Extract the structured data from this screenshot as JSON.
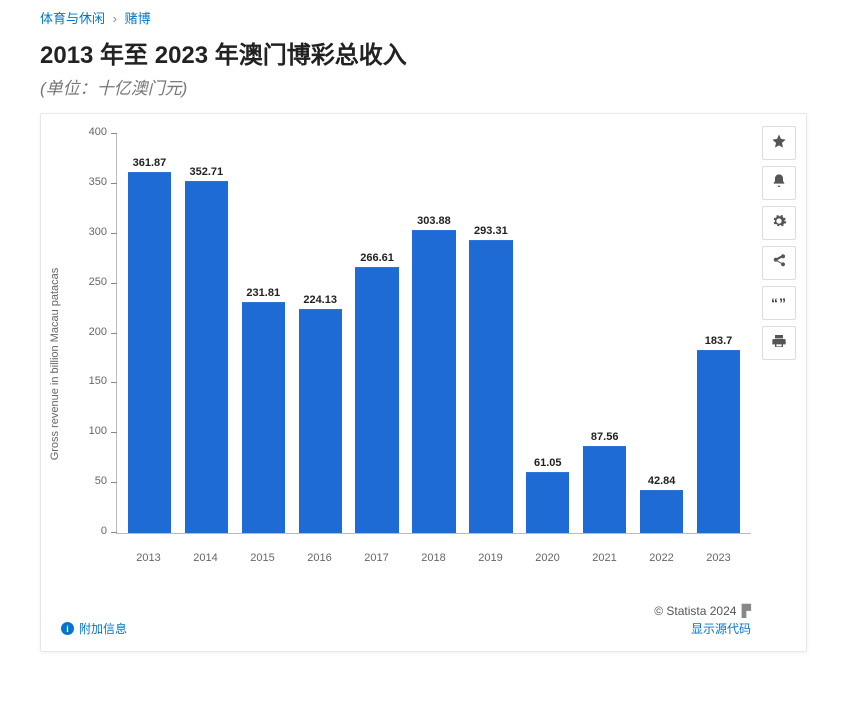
{
  "breadcrumb": {
    "level1": "体育与休闲",
    "sep": "›",
    "level2": "赌博"
  },
  "title": "2013 年至 2023 年澳门博彩总收入",
  "subtitle": "(单位：十亿澳门元)",
  "chart": {
    "type": "bar",
    "bar_color": "#1f6bd6",
    "background_color": "#ffffff",
    "ylabel": "Gross revenue in billion Macau patacas",
    "ylim_min": 0,
    "ylim_max": 400,
    "ytick_step": 50,
    "yticks": [
      0,
      50,
      100,
      150,
      200,
      250,
      300,
      350,
      400
    ],
    "bar_width_pct": 76,
    "label_fontsize": 11,
    "value_fontsize": 11,
    "categories": [
      "2013",
      "2014",
      "2015",
      "2016",
      "2017",
      "2018",
      "2019",
      "2020",
      "2021",
      "2022",
      "2023"
    ],
    "values": [
      361.87,
      352.71,
      231.81,
      224.13,
      266.61,
      303.88,
      293.31,
      61.05,
      87.56,
      42.84,
      183.7
    ]
  },
  "side_buttons": {
    "star": "star-icon",
    "bell": "bell-icon",
    "gear": "gear-icon",
    "share": "share-icon",
    "quote": "quote-icon",
    "print": "print-icon"
  },
  "footer": {
    "info_label": "附加信息",
    "copyright": "© Statista 2024",
    "source_link": "显示源代码"
  }
}
